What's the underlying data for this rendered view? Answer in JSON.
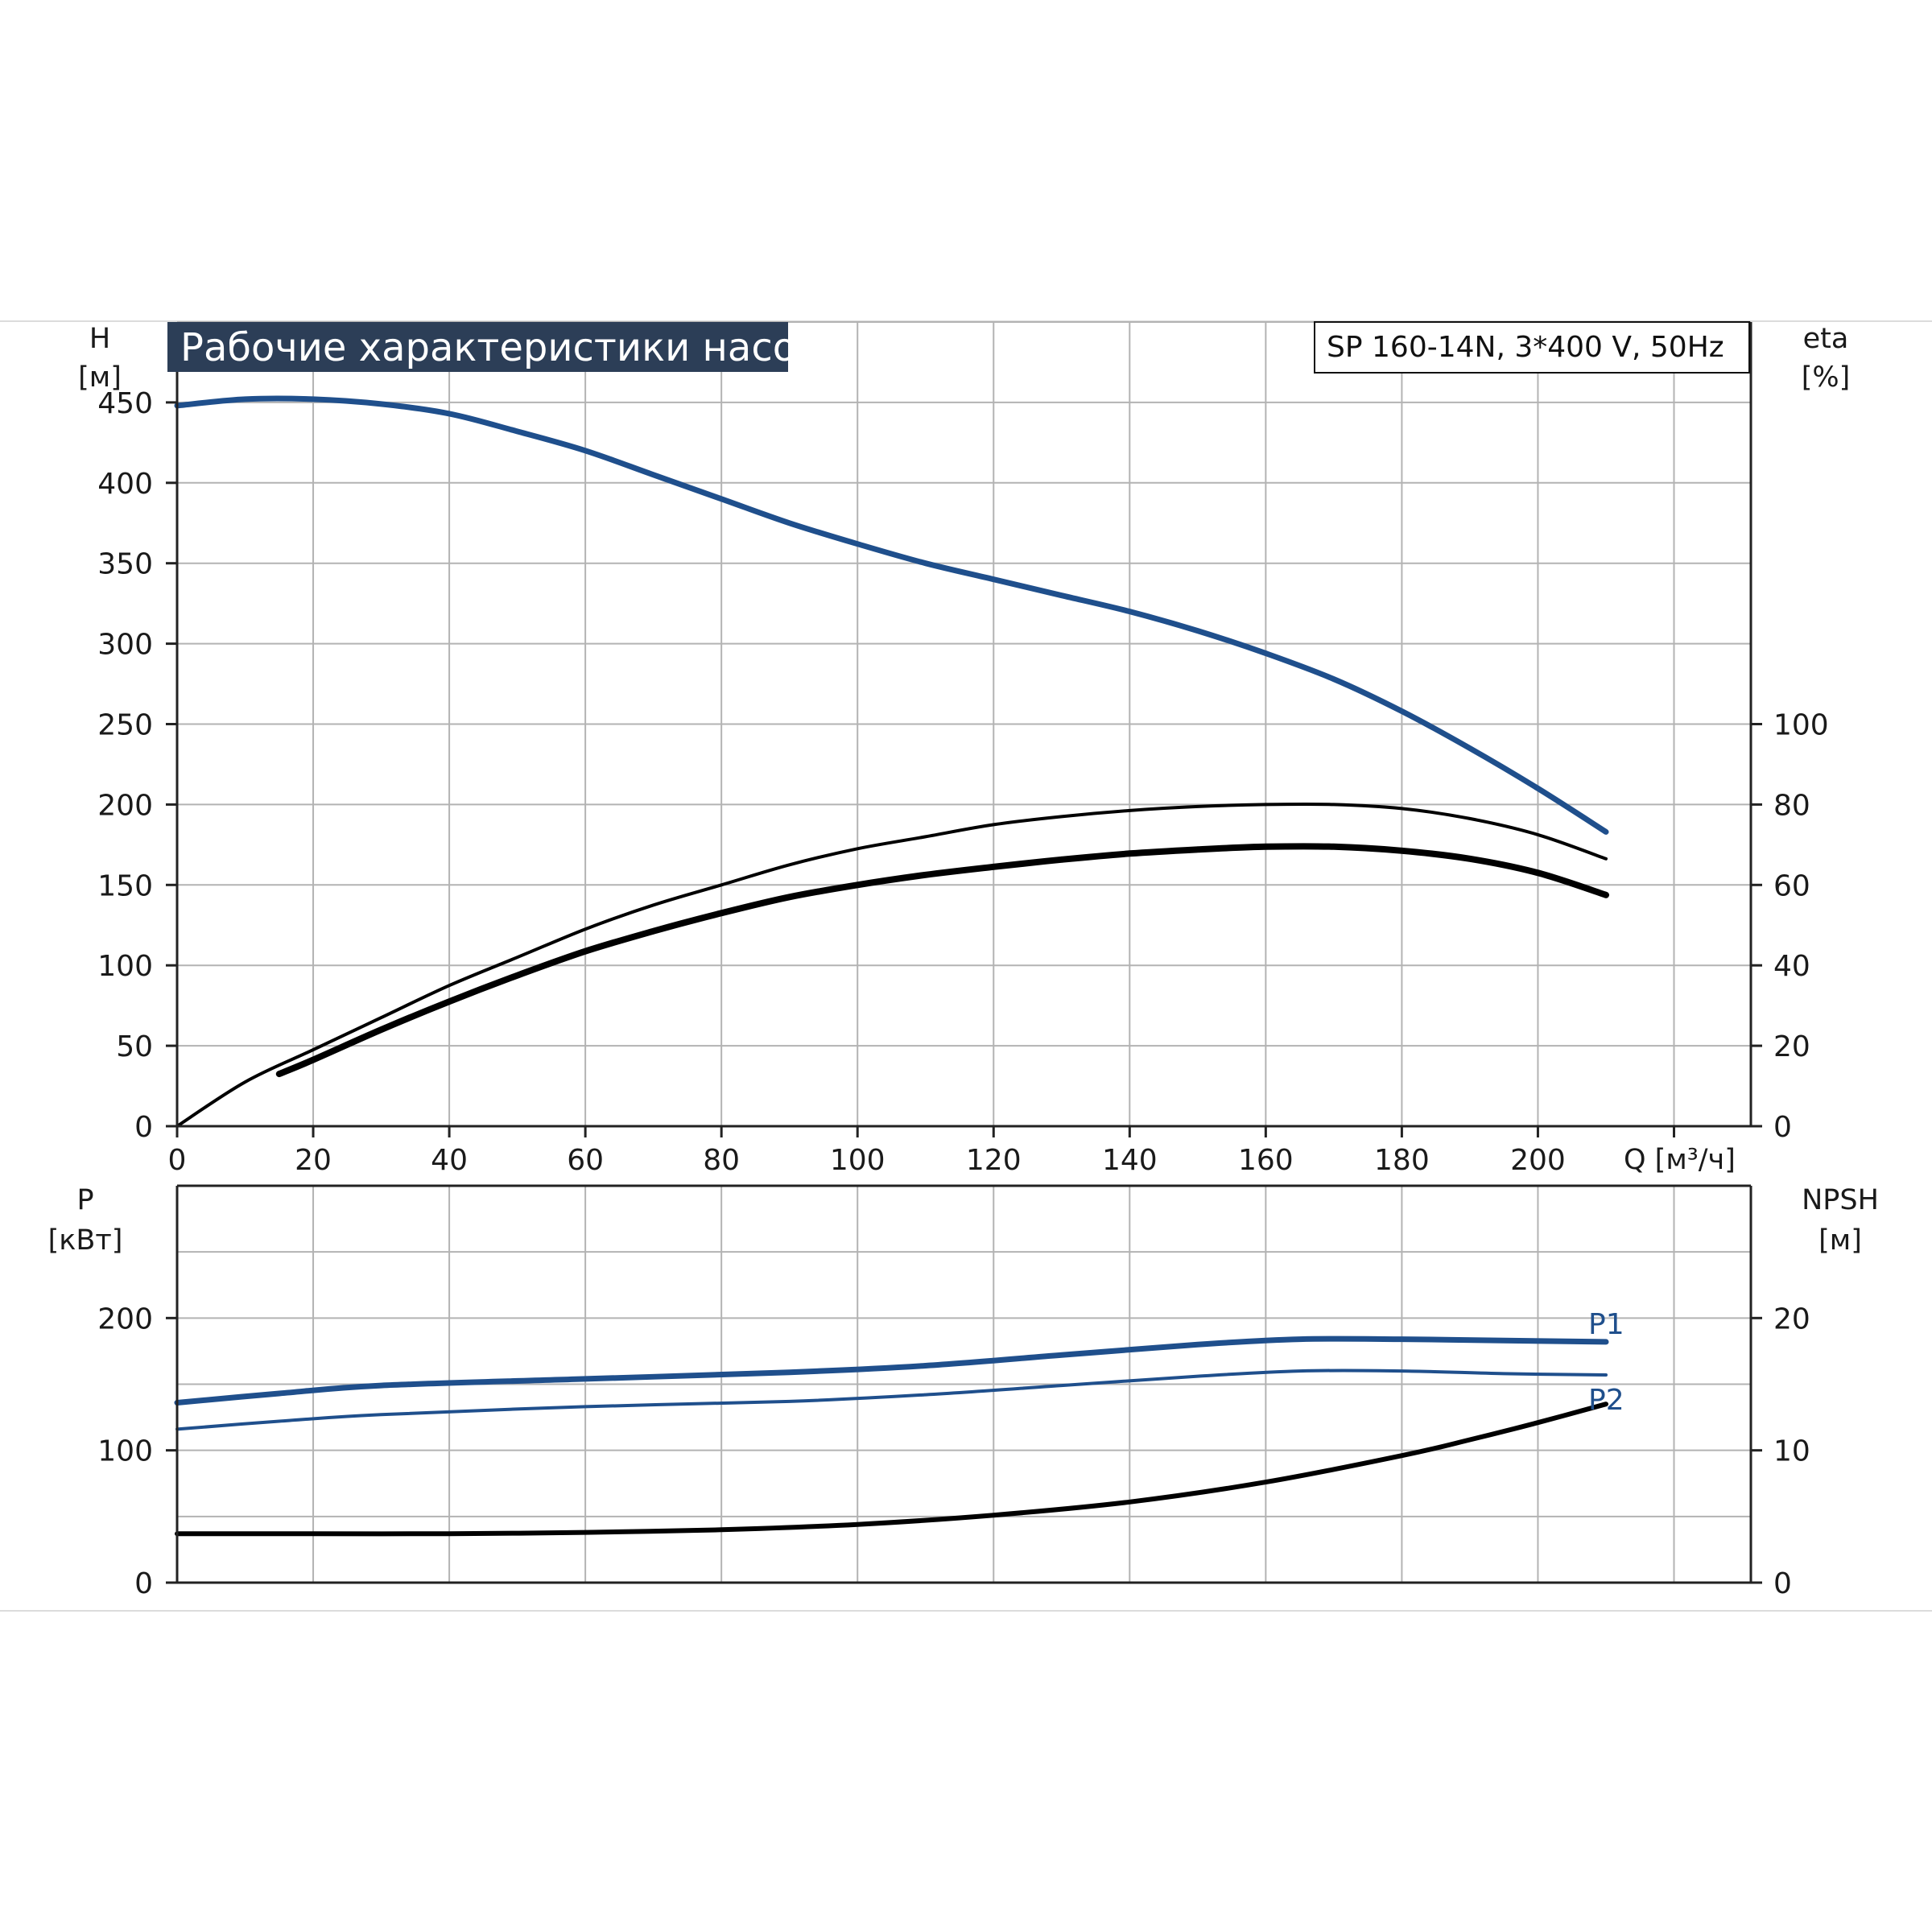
{
  "colors": {
    "blue": "#1f4f8c",
    "black": "#000000",
    "grid": "#b3b3b3",
    "title_bg": "#2c3e57",
    "title_fg": "#ffffff"
  },
  "title": "Рабочие характеристики насоса",
  "model": "SP 160-14N, 3*400 V, 50Hz",
  "chart_data": [
    {
      "type": "line",
      "panel": "top",
      "left_axis": {
        "label_line1": "H",
        "label_line2": "[м]",
        "range": [
          0,
          500
        ],
        "ticks": [
          0,
          50,
          100,
          150,
          200,
          250,
          300,
          350,
          400,
          450
        ]
      },
      "right_axis": {
        "label_line1": "eta",
        "label_line2": "[%]",
        "range": [
          0,
          200
        ],
        "ticks": [
          0,
          20,
          40,
          60,
          80,
          100
        ]
      },
      "x_axis": {
        "label": "Q [м³/ч]",
        "range": [
          0,
          231.3
        ],
        "ticks": [
          0,
          20,
          40,
          60,
          80,
          100,
          120,
          140,
          160,
          180,
          200
        ]
      },
      "grid": true,
      "series": [
        {
          "axis": "left",
          "color": "#1f4f8c",
          "width": 7,
          "x": [
            0,
            10,
            20,
            30,
            40,
            50,
            60,
            70,
            80,
            90,
            100,
            110,
            120,
            130,
            140,
            150,
            160,
            170,
            180,
            190,
            200,
            210
          ],
          "y": [
            448,
            452,
            452,
            449,
            443,
            432,
            420,
            405,
            390,
            375,
            362,
            350,
            340,
            330,
            320,
            308,
            294,
            278,
            258,
            235,
            210,
            183
          ]
        },
        {
          "axis": "right",
          "color": "#000000",
          "width": 4,
          "x": [
            0,
            10,
            20,
            30,
            40,
            50,
            60,
            70,
            80,
            90,
            100,
            110,
            120,
            130,
            140,
            150,
            160,
            170,
            180,
            190,
            200,
            210
          ],
          "y": [
            0,
            11,
            19,
            27,
            35,
            42,
            49,
            55,
            60,
            65,
            69,
            72,
            75,
            77,
            78.5,
            79.5,
            80,
            80,
            79,
            76.5,
            72.5,
            66.5
          ]
        },
        {
          "axis": "right",
          "color": "#000000",
          "width": 8,
          "x": [
            15,
            20,
            30,
            40,
            50,
            60,
            70,
            80,
            90,
            100,
            110,
            120,
            130,
            140,
            150,
            160,
            170,
            180,
            190,
            200,
            210
          ],
          "y": [
            13,
            16.5,
            24,
            31,
            37.5,
            43.5,
            48.5,
            53,
            57,
            60,
            62.5,
            64.5,
            66.3,
            67.8,
            68.8,
            69.5,
            69.5,
            68.5,
            66.5,
            63,
            57.5
          ]
        }
      ]
    },
    {
      "type": "line",
      "panel": "bottom",
      "left_axis": {
        "label_line1": "P",
        "label_line2": "[кВт]",
        "range": [
          0,
          300
        ],
        "ticks": [
          0,
          100,
          200
        ]
      },
      "right_axis": {
        "label_line1": "NPSH",
        "label_line2": "[м]",
        "range": [
          0,
          30
        ],
        "ticks": [
          0,
          10,
          20
        ]
      },
      "x_axis": {
        "range": [
          0,
          231.3
        ]
      },
      "grid": true,
      "series": [
        {
          "name": "P1",
          "axis": "left",
          "color": "#1f4f8c",
          "width": 7,
          "x": [
            0,
            15,
            30,
            60,
            90,
            110,
            130,
            150,
            165,
            180,
            195,
            210
          ],
          "y": [
            136,
            143,
            149,
            154,
            159,
            164,
            172,
            180,
            184,
            184,
            183,
            182
          ]
        },
        {
          "name": "P2",
          "axis": "left",
          "color": "#1f4f8c",
          "width": 4,
          "x": [
            0,
            15,
            30,
            60,
            90,
            110,
            130,
            150,
            165,
            180,
            195,
            210
          ],
          "y": [
            116,
            122,
            127,
            133,
            137,
            142,
            149,
            156,
            160,
            160,
            158,
            157
          ]
        },
        {
          "axis": "right",
          "color": "#000000",
          "width": 6,
          "x": [
            0,
            20,
            40,
            60,
            80,
            100,
            120,
            140,
            160,
            180,
            190,
            200,
            210
          ],
          "y": [
            3.7,
            3.7,
            3.7,
            3.8,
            4.0,
            4.4,
            5.1,
            6.1,
            7.6,
            9.6,
            10.8,
            12.1,
            13.5
          ]
        }
      ]
    }
  ]
}
